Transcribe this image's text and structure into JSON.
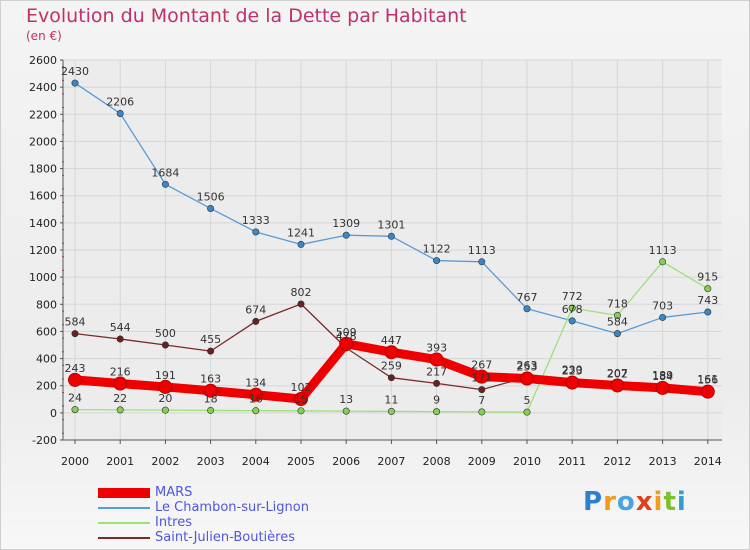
{
  "title": "Evolution du Montant de la Dette par Habitant",
  "unit": "(en €)",
  "logo": "Proxiti",
  "chart_data": {
    "type": "line",
    "title": "Evolution du Montant de la Dette par Habitant",
    "subtitle": "(en €)",
    "xlabel": "",
    "ylabel": "",
    "x": [
      "2000",
      "2001",
      "2002",
      "2003",
      "2004",
      "2005",
      "2006",
      "2007",
      "2008",
      "2009",
      "2010",
      "2011",
      "2012",
      "2013",
      "2014"
    ],
    "ylim": [
      -200,
      2600
    ],
    "ytick_step": 200,
    "grid": true,
    "legend_position": "bottom-left",
    "series": [
      {
        "name": "MARS",
        "color": "#ee0000",
        "values": [
          243,
          216,
          191,
          163,
          134,
          102,
          509,
          447,
          393,
          267,
          253,
          223,
          202,
          184,
          156
        ],
        "labels": [
          "243",
          "216",
          "191",
          "163",
          "134",
          "102",
          "509",
          "447",
          "393",
          "267",
          "253",
          "223",
          "202",
          "184",
          "156"
        ]
      },
      {
        "name": "Le Chambon-sur-Lignon",
        "color": "#5b9bd5",
        "point_color": "#3a87c8",
        "values": [
          2430,
          2206,
          1684,
          1506,
          1333,
          1241,
          1309,
          1301,
          1122,
          1113,
          767,
          678,
          584,
          703,
          743
        ],
        "labels": [
          "2430",
          "2206",
          "1684",
          "1506",
          "1333",
          "1241",
          "1309",
          "1301",
          "1122",
          "1113",
          "767",
          "678",
          "584",
          "703",
          "743"
        ]
      },
      {
        "name": "Intres",
        "color": "#9ee07a",
        "point_color": "#82d14f",
        "values": [
          24,
          22,
          20,
          18,
          16,
          15,
          13,
          11,
          9,
          7,
          5,
          772,
          718,
          1113,
          915
        ],
        "labels": [
          "24",
          "22",
          "20",
          "18",
          "16",
          "15",
          "13",
          "11",
          "9",
          "7",
          "5",
          "772",
          "718",
          "1113",
          "915"
        ]
      },
      {
        "name": "Saint-Julien-Boutières",
        "color": "#7a2a2a",
        "point_color": "#6b2020",
        "values": [
          584,
          544,
          500,
          455,
          674,
          802,
          478,
          259,
          217,
          171,
          263,
          230,
          207,
          189,
          161
        ],
        "labels": [
          "584",
          "544",
          "500",
          "455",
          "674",
          "802",
          "478",
          "259",
          "217",
          "171",
          "263",
          "230",
          "207",
          "189",
          "161"
        ]
      }
    ]
  }
}
